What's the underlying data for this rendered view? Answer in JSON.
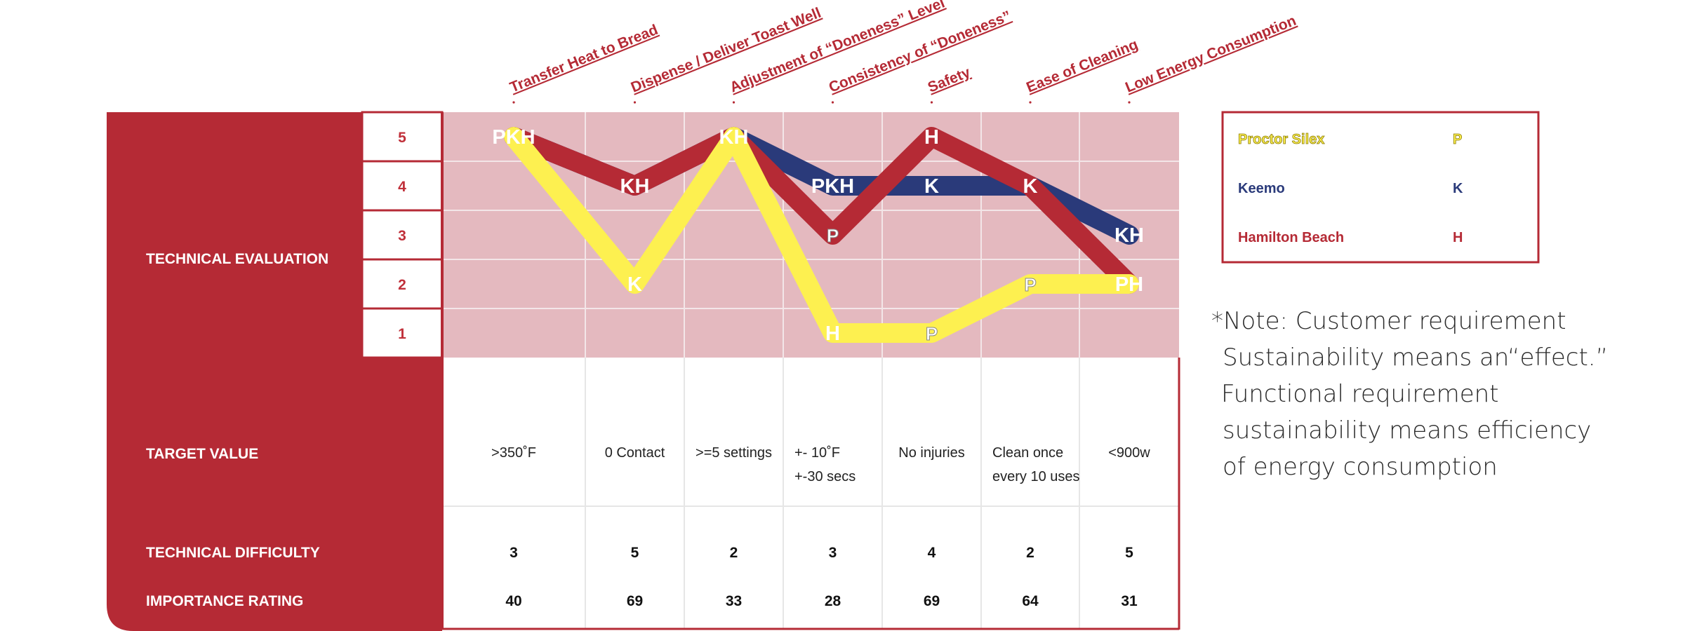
{
  "columns": [
    {
      "label": "Transfer Heat to Bread",
      "target": [
        ">350˚F"
      ],
      "difficulty": "3",
      "importance": "40"
    },
    {
      "label": "Dispense / Deliver Toast Well",
      "target": [
        "0 Contact"
      ],
      "difficulty": "5",
      "importance": "69"
    },
    {
      "label": "Adjustment of “Doneness” Level",
      "target": [
        ">=5 settings"
      ],
      "difficulty": "2",
      "importance": "33"
    },
    {
      "label": "Consistency of “Doneness”",
      "target": [
        "+- 10˚F",
        "+-30 secs"
      ],
      "difficulty": "3",
      "importance": "28"
    },
    {
      "label": "Safety",
      "target": [
        "No injuries"
      ],
      "difficulty": "4",
      "importance": "69"
    },
    {
      "label": "Ease of Cleaning",
      "target": [
        "Clean once",
        "every 10 uses"
      ],
      "difficulty": "2",
      "importance": "64"
    },
    {
      "label": "Low Energy Consumption",
      "target": [
        "<900w"
      ],
      "difficulty": "5",
      "importance": "31"
    }
  ],
  "row_labels": {
    "technical_evaluation": "TECHNICAL EVALUATION",
    "target_value": "TARGET VALUE",
    "technical_difficulty": "TECHNICAL DIFFICULTY",
    "importance_rating": "IMPORTANCE RATING"
  },
  "scale": [
    "5",
    "4",
    "3",
    "2",
    "1"
  ],
  "series": [
    {
      "key": "K",
      "name": "Keemo",
      "color": "#2a3a7a",
      "values": [
        5,
        4,
        5,
        4,
        4,
        4,
        3
      ]
    },
    {
      "key": "H",
      "name": "Hamilton Beach",
      "color": "#b52a35",
      "values": [
        5,
        4,
        5,
        3,
        5,
        4,
        2
      ]
    },
    {
      "key": "P",
      "name": "Proctor Silex",
      "color": "#fdf050",
      "values": [
        5,
        2,
        5,
        1,
        1,
        2,
        2
      ]
    }
  ],
  "point_labels": [
    "PKH",
    "KH",
    "PKH",
    "K",
    "K",
    "KH",
    "K",
    "P",
    "H",
    "H",
    "P",
    "P",
    "PH"
  ],
  "legend": [
    {
      "name": "Proctor Silex",
      "key": "P",
      "color": "#fdf050"
    },
    {
      "name": "Keemo",
      "key": "K",
      "color": "#2a3a7a"
    },
    {
      "name": "Hamilton Beach",
      "key": "H",
      "color": "#b52a35"
    }
  ],
  "note": {
    "lead": "*Note:",
    "lines": [
      "Customer requirement",
      "Sustainability means an“effect.”",
      "Functional requirement",
      "sustainability means efficiency",
      "of energy consumption"
    ]
  },
  "colors": {
    "brand_red": "#b52a35",
    "panel_pink": "#e4b9bf",
    "grid": "#e6e6e6",
    "label_red": "#c0303a"
  }
}
